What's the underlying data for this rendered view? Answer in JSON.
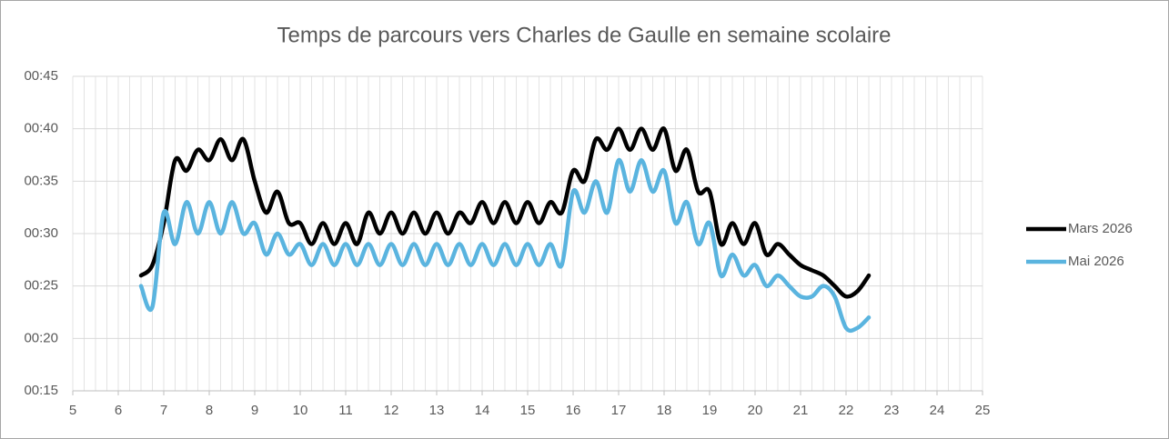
{
  "chart_data": {
    "type": "line",
    "title": "Temps de parcours vers Charles de Gaulle en semaine scolaire",
    "x": [
      6.5,
      6.75,
      7,
      7.25,
      7.5,
      7.75,
      8,
      8.25,
      8.5,
      8.75,
      9,
      9.25,
      9.5,
      9.75,
      10,
      10.25,
      10.5,
      10.75,
      11,
      11.25,
      11.5,
      11.75,
      12,
      12.25,
      12.5,
      12.75,
      13,
      13.25,
      13.5,
      13.75,
      14,
      14.25,
      14.5,
      14.75,
      15,
      15.25,
      15.5,
      15.75,
      16,
      16.25,
      16.5,
      16.75,
      17,
      17.25,
      17.5,
      17.75,
      18,
      18.25,
      18.5,
      18.75,
      19,
      19.25,
      19.5,
      19.75,
      20,
      20.25,
      20.5,
      20.75,
      21,
      21.25,
      21.5,
      21.75,
      22,
      22.25,
      22.5
    ],
    "series": [
      {
        "name": "Mars 2026",
        "color": "#000000",
        "values": [
          26,
          27,
          31,
          37,
          36,
          38,
          37,
          39,
          37,
          39,
          35,
          32,
          34,
          31,
          31,
          29,
          31,
          29,
          31,
          29,
          32,
          30,
          32,
          30,
          32,
          30,
          32,
          30,
          32,
          31,
          33,
          31,
          33,
          31,
          33,
          31,
          33,
          32,
          36,
          35,
          39,
          38,
          40,
          38,
          40,
          38,
          40,
          36,
          38,
          34,
          34,
          29,
          31,
          29,
          31,
          28,
          29,
          28,
          27,
          26.5,
          26,
          25,
          24,
          24.5,
          26
        ]
      },
      {
        "name": "Mai 2026",
        "color": "#5ab4df",
        "values": [
          25,
          23,
          32,
          29,
          33,
          30,
          33,
          30,
          33,
          30,
          31,
          28,
          30,
          28,
          29,
          27,
          29,
          27,
          29,
          27,
          29,
          27,
          29,
          27,
          29,
          27,
          29,
          27,
          29,
          27,
          29,
          27,
          29,
          27,
          29,
          27,
          29,
          27,
          34,
          32,
          35,
          32,
          37,
          34,
          37,
          34,
          36,
          31,
          33,
          29,
          31,
          26,
          28,
          26,
          27,
          25,
          26,
          25,
          24,
          24,
          25,
          24,
          21,
          21,
          22
        ]
      }
    ],
    "xlim": [
      5,
      25
    ],
    "xticks": [
      5,
      6,
      7,
      8,
      9,
      10,
      11,
      12,
      13,
      14,
      15,
      16,
      17,
      18,
      19,
      20,
      21,
      22,
      23,
      24,
      25
    ],
    "x_minor_step": 0.25,
    "ylim": [
      15,
      45
    ],
    "yticks": [
      {
        "value": 15,
        "label": "00:15"
      },
      {
        "value": 20,
        "label": "00:20"
      },
      {
        "value": 25,
        "label": "00:25"
      },
      {
        "value": 30,
        "label": "00:30"
      },
      {
        "value": 35,
        "label": "00:35"
      },
      {
        "value": 40,
        "label": "00:40"
      },
      {
        "value": 45,
        "label": "00:45"
      }
    ],
    "grid": true,
    "legend": "right"
  }
}
